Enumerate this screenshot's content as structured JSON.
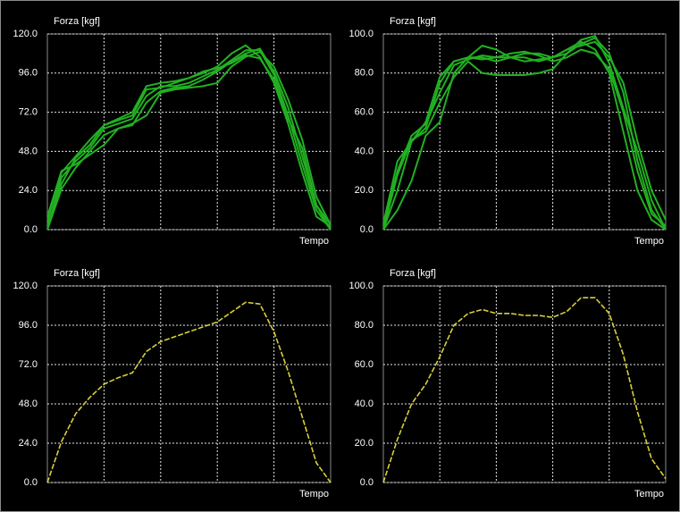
{
  "chart_data": [
    {
      "type": "line",
      "ylabel": "Forza [kgf]",
      "xlabel": "Tempo",
      "ylim": [
        0,
        120
      ],
      "yticks": [
        {
          "value": 0,
          "label": "0.0"
        },
        {
          "value": 24,
          "label": "24.0"
        },
        {
          "value": 48,
          "label": "48.0"
        },
        {
          "value": 72,
          "label": "72.0"
        },
        {
          "value": 96,
          "label": "96.0"
        },
        {
          "value": 120,
          "label": "120.0"
        }
      ],
      "grid": true,
      "line_style": "solid",
      "series": [
        {
          "color": "#22b022",
          "values": [
            0,
            32,
            42,
            50,
            62,
            65,
            68,
            82,
            88,
            88,
            90,
            94,
            98,
            104,
            110,
            110,
            95,
            70,
            40,
            12,
            0
          ]
        },
        {
          "color": "#22b022",
          "values": [
            5,
            35,
            45,
            55,
            64,
            67,
            70,
            86,
            87,
            90,
            93,
            96,
            100,
            108,
            113,
            106,
            90,
            65,
            35,
            8,
            2
          ]
        },
        {
          "color": "#22b022",
          "values": [
            0,
            25,
            38,
            48,
            58,
            62,
            64,
            78,
            85,
            87,
            88,
            92,
            97,
            103,
            108,
            111,
            97,
            75,
            45,
            15,
            3
          ]
        },
        {
          "color": "#22b022",
          "values": [
            8,
            36,
            40,
            46,
            52,
            62,
            65,
            70,
            84,
            86,
            87,
            88,
            90,
            100,
            106,
            109,
            100,
            80,
            55,
            20,
            3
          ]
        },
        {
          "color": "#22b022",
          "values": [
            2,
            28,
            44,
            52,
            64,
            68,
            72,
            88,
            90,
            91,
            93,
            97,
            99,
            102,
            107,
            105,
            92,
            68,
            50,
            15,
            0
          ]
        }
      ]
    },
    {
      "type": "line",
      "ylabel": "Forza [kgf]",
      "xlabel": "Tempo",
      "ylim": [
        0,
        100
      ],
      "yticks": [
        {
          "value": 0,
          "label": "0.0"
        },
        {
          "value": 20,
          "label": "20.0"
        },
        {
          "value": 40,
          "label": "40.0"
        },
        {
          "value": 60,
          "label": "60.0"
        },
        {
          "value": 80,
          "label": "80.0"
        },
        {
          "value": 100,
          "label": "100.0"
        }
      ],
      "grid": true,
      "line_style": "solid",
      "series": [
        {
          "color": "#22b022",
          "values": [
            0,
            20,
            45,
            52,
            75,
            86,
            88,
            88,
            86,
            88,
            90,
            90,
            88,
            90,
            95,
            98,
            90,
            70,
            35,
            10,
            0
          ]
        },
        {
          "color": "#22b022",
          "values": [
            0,
            10,
            25,
            48,
            55,
            80,
            88,
            94,
            92,
            88,
            86,
            87,
            88,
            92,
            96,
            92,
            80,
            50,
            20,
            5,
            0
          ]
        },
        {
          "color": "#22b022",
          "values": [
            2,
            30,
            48,
            54,
            70,
            84,
            87,
            89,
            88,
            90,
            91,
            89,
            86,
            88,
            92,
            90,
            82,
            60,
            30,
            8,
            2
          ]
        },
        {
          "color": "#22b022",
          "values": [
            0,
            28,
            46,
            50,
            65,
            78,
            86,
            80,
            79,
            79,
            79,
            80,
            82,
            90,
            97,
            99,
            85,
            62,
            40,
            15,
            0
          ]
        },
        {
          "color": "#22b022",
          "values": [
            3,
            35,
            45,
            55,
            78,
            86,
            88,
            87,
            88,
            88,
            88,
            86,
            88,
            92,
            94,
            96,
            88,
            75,
            45,
            20,
            5
          ]
        }
      ]
    },
    {
      "type": "line",
      "ylabel": "Forza [kgf]",
      "xlabel": "Tempo",
      "ylim": [
        0,
        120
      ],
      "yticks": [
        {
          "value": 0,
          "label": "0.0"
        },
        {
          "value": 24,
          "label": "24.0"
        },
        {
          "value": 48,
          "label": "48.0"
        },
        {
          "value": 72,
          "label": "72.0"
        },
        {
          "value": 96,
          "label": "96.0"
        },
        {
          "value": 120,
          "label": "120.0"
        }
      ],
      "grid": true,
      "line_style": "dashed",
      "series": [
        {
          "color": "#d8cf3a",
          "values": [
            0,
            25,
            42,
            52,
            60,
            64,
            67,
            80,
            86,
            89,
            92,
            95,
            98,
            104,
            110,
            109,
            92,
            68,
            40,
            12,
            0
          ]
        }
      ]
    },
    {
      "type": "line",
      "ylabel": "Forza [kgf]",
      "xlabel": "Tempo",
      "ylim": [
        0,
        100
      ],
      "yticks": [
        {
          "value": 0,
          "label": "0.0"
        },
        {
          "value": 20,
          "label": "20.0"
        },
        {
          "value": 40,
          "label": "40.0"
        },
        {
          "value": 60,
          "label": "60.0"
        },
        {
          "value": 80,
          "label": "80.0"
        },
        {
          "value": 100,
          "label": "100.0"
        }
      ],
      "grid": true,
      "line_style": "dashed",
      "series": [
        {
          "color": "#d8cf3a",
          "values": [
            0,
            22,
            40,
            50,
            64,
            80,
            86,
            88,
            86,
            86,
            85,
            85,
            84,
            87,
            94,
            94,
            86,
            65,
            36,
            12,
            2
          ]
        }
      ]
    }
  ]
}
